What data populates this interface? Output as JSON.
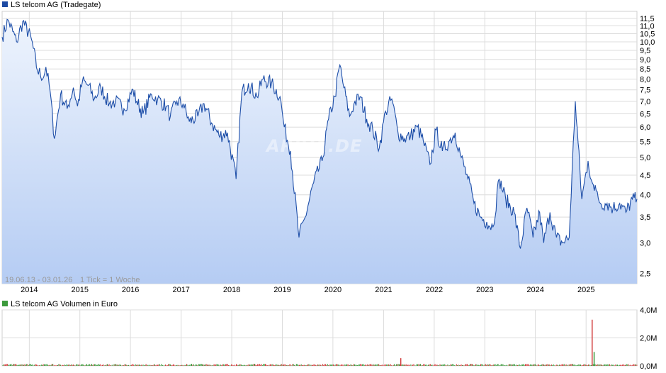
{
  "price_chart": {
    "legend": "LS telcom AG (Tradegate)",
    "legend_color": "#1d4aa3",
    "date_range": "19.06.13 - 03.01.26",
    "tick_info": "1 Tick = 1 Woche",
    "watermark": "ARIVA.DE"
  },
  "volume_chart": {
    "legend": "LS telcom AG Volumen in Euro",
    "legend_color": "#3c9a3c"
  },
  "colors": {
    "line": "#1d4ea8",
    "area_top": "#eef4fd",
    "area_bottom": "#b5ccf3",
    "grid": "#dcdcdc",
    "volume_up": "#3c9a3c",
    "volume_down": "#d23c3c"
  },
  "chart_data": [
    {
      "type": "area",
      "title": "LS telcom AG (Tradegate)",
      "x_range": [
        "2013-06-19",
        "2026-01-03"
      ],
      "y_scale": "log",
      "ylim": [
        2.35,
        12.0
      ],
      "y_ticks": [
        "2,5",
        "3,0",
        "3,5",
        "4,0",
        "4,5",
        "5,0",
        "5,5",
        "6,0",
        "6,5",
        "7,0",
        "7,5",
        "8,0",
        "8,5",
        "9,0",
        "9,5",
        "10,0",
        "10,5",
        "11,0",
        "11,5"
      ],
      "x_ticks": [
        "2014",
        "2015",
        "2016",
        "2017",
        "2018",
        "2019",
        "2020",
        "2021",
        "2022",
        "2023",
        "2024",
        "2025"
      ],
      "grid": true,
      "legend_position": "top-left",
      "series": [
        {
          "name": "LS telcom AG (Tradegate)",
          "x": [
            "2013-06-19",
            "2013-08-01",
            "2013-10-01",
            "2013-11-15",
            "2014-01-15",
            "2014-03-01",
            "2014-04-15",
            "2014-05-01",
            "2014-06-01",
            "2014-07-01",
            "2014-08-15",
            "2014-10-01",
            "2014-11-15",
            "2014-12-15",
            "2015-01-20",
            "2015-03-01",
            "2015-04-15",
            "2015-06-01",
            "2015-08-01",
            "2015-09-15",
            "2015-11-15",
            "2016-01-20",
            "2016-02-15",
            "2016-04-01",
            "2016-06-01",
            "2016-07-15",
            "2016-09-15",
            "2016-10-15",
            "2016-12-01",
            "2017-01-15",
            "2017-03-01",
            "2017-05-01",
            "2017-06-15",
            "2017-08-15",
            "2017-10-01",
            "2017-12-01",
            "2018-02-01",
            "2018-03-15",
            "2018-05-01",
            "2018-07-01",
            "2018-08-15",
            "2018-10-15",
            "2018-12-15",
            "2019-01-15",
            "2019-03-01",
            "2019-05-01",
            "2019-06-15",
            "2019-08-15",
            "2019-10-15",
            "2019-12-01",
            "2020-01-15",
            "2020-02-20",
            "2020-03-20",
            "2020-05-01",
            "2020-06-01",
            "2020-07-15",
            "2020-09-01",
            "2020-10-15",
            "2020-12-01",
            "2021-01-15",
            "2021-03-01",
            "2021-04-15",
            "2021-06-01",
            "2021-07-15",
            "2021-09-01",
            "2021-10-15",
            "2021-12-01",
            "2022-01-15",
            "2022-03-01",
            "2022-04-15",
            "2022-06-01",
            "2022-07-15",
            "2022-09-01",
            "2022-10-15",
            "2022-12-01",
            "2023-01-15",
            "2023-03-01",
            "2023-04-15",
            "2023-06-01",
            "2023-08-01",
            "2023-09-15",
            "2023-11-01",
            "2023-12-15",
            "2024-02-01",
            "2024-03-01",
            "2024-04-15",
            "2024-06-01",
            "2024-07-15",
            "2024-09-01",
            "2024-10-15",
            "2024-12-01",
            "2025-01-15",
            "2025-02-15",
            "2025-03-01",
            "2025-03-15",
            "2025-04-15",
            "2025-06-01",
            "2025-07-15",
            "2025-09-01",
            "2025-10-15",
            "2025-12-01",
            "2026-01-03"
          ],
          "y": [
            10.3,
            11.4,
            10.0,
            11.3,
            10.2,
            8.4,
            8.1,
            8.6,
            7.4,
            5.6,
            7.3,
            6.7,
            7.6,
            6.8,
            7.9,
            7.7,
            7.1,
            7.6,
            6.9,
            7.0,
            6.7,
            7.5,
            7.0,
            6.5,
            7.3,
            7.1,
            6.8,
            6.4,
            7.0,
            6.9,
            6.2,
            6.4,
            6.9,
            6.1,
            5.7,
            5.8,
            4.4,
            7.4,
            7.8,
            7.2,
            8.0,
            7.8,
            7.2,
            6.0,
            5.2,
            3.1,
            3.5,
            4.3,
            4.9,
            6.3,
            7.2,
            8.7,
            7.6,
            6.4,
            6.9,
            7.2,
            6.3,
            5.9,
            5.3,
            6.6,
            7.1,
            5.8,
            5.6,
            5.7,
            6.0,
            5.5,
            4.8,
            5.9,
            5.2,
            5.5,
            5.8,
            5.0,
            4.4,
            3.8,
            3.5,
            3.4,
            3.3,
            4.4,
            3.9,
            3.6,
            2.9,
            3.7,
            3.1,
            3.6,
            3.0,
            3.6,
            3.1,
            3.0,
            3.1,
            7.0,
            3.9,
            4.9,
            4.3,
            4.1,
            4.1,
            3.8,
            3.8,
            3.7,
            3.8,
            3.6,
            3.9,
            3.9
          ]
        }
      ]
    },
    {
      "type": "bar",
      "title": "LS telcom AG Volumen in Euro",
      "y_ticks": [
        "0,0M",
        "2,0M",
        "4,0M"
      ],
      "ylim": [
        0,
        4.0
      ],
      "unit": "M EUR",
      "x": [
        "2021-05-01",
        "2025-02-10",
        "2025-02-24"
      ],
      "values": [
        0.55,
        3.3,
        1.0
      ]
    }
  ]
}
